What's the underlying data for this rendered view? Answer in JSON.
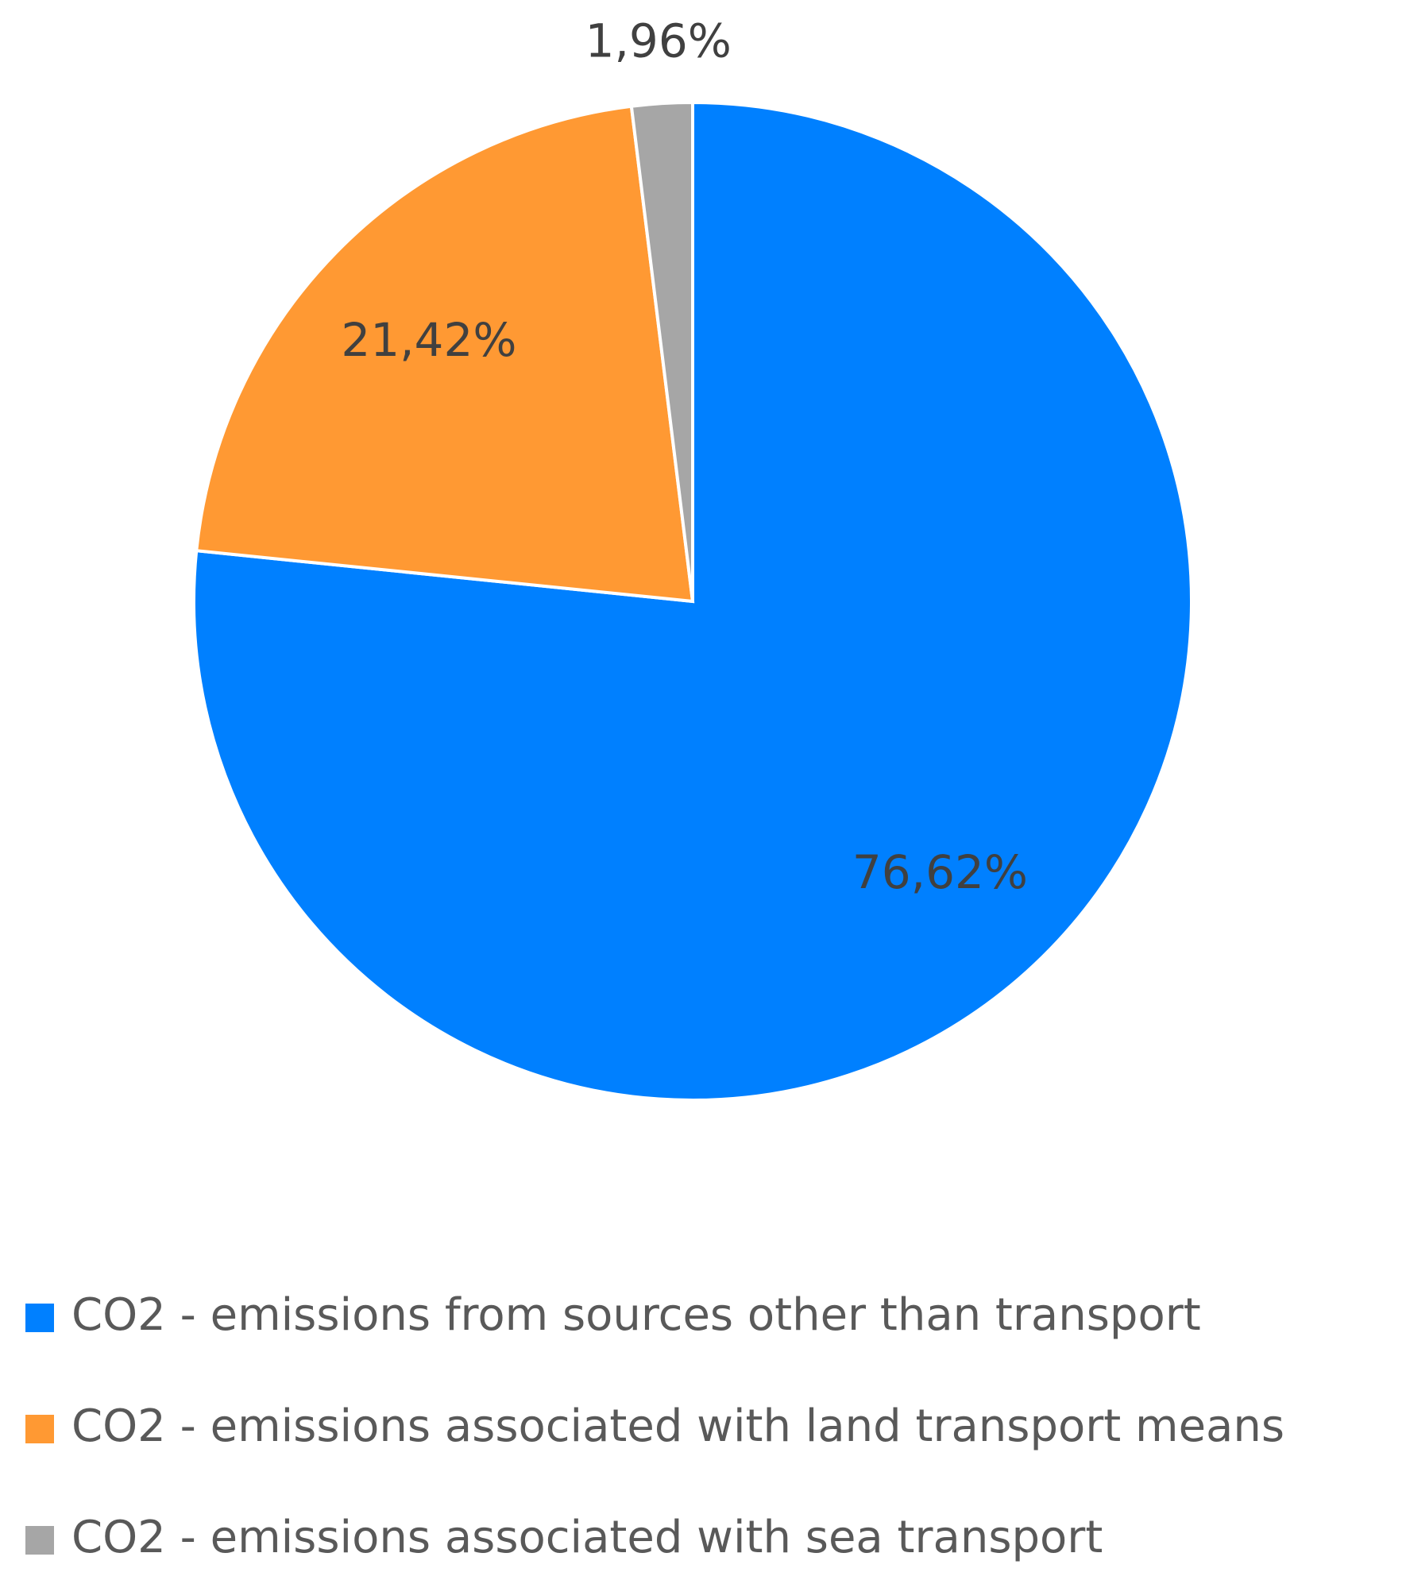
{
  "chart_data": {
    "type": "pie",
    "categories": [
      "CO2 - emissions from sources other than transport",
      "CO2 - emissions associated with land transport means",
      "CO2 - emissions associated with sea transport"
    ],
    "values": [
      76.62,
      21.42,
      1.96
    ],
    "value_labels": [
      "76,62%",
      "21,42%",
      "1,96%"
    ],
    "colors": [
      "#0080ff",
      "#ff9933",
      "#a6a6a6"
    ],
    "legend": "bottom"
  }
}
